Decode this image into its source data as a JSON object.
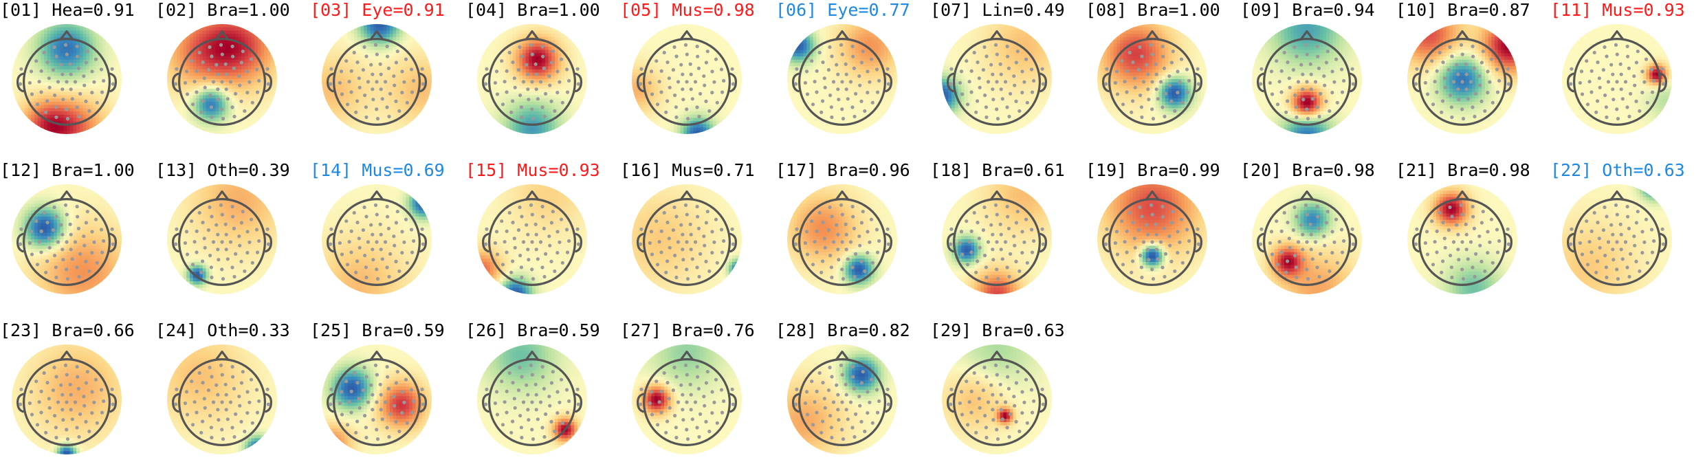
{
  "chart_data": {
    "type": "topomap-grid",
    "title": "",
    "colormap": "Spectral_r",
    "label_colors": {
      "default": "#000000",
      "red": "#ff1a1a",
      "blue": "#1e88e5"
    },
    "components": [
      {
        "index": "[01]",
        "label": "Hea",
        "score": "0.91",
        "color": "default",
        "pattern": [
          [
            "n",
            0,
            -0.55,
            0.35,
            1.3
          ],
          [
            "p",
            -0.35,
            0.85,
            0.35,
            1.1
          ],
          [
            "p",
            0.2,
            0.9,
            0.4,
            0.8
          ]
        ]
      },
      {
        "index": "[02]",
        "label": "Bra",
        "score": "1.00",
        "color": "default",
        "pattern": [
          [
            "n",
            -0.2,
            0.45,
            0.22,
            1.1
          ],
          [
            "p",
            0.3,
            -0.6,
            0.5,
            0.9
          ],
          [
            "p",
            -0.4,
            -0.5,
            0.5,
            0.6
          ]
        ]
      },
      {
        "index": "[03]",
        "label": "Eye",
        "score": "0.91",
        "color": "red",
        "pattern": [
          [
            "n",
            0.05,
            -1.0,
            0.25,
            1.4
          ],
          [
            "p",
            -0.8,
            0.2,
            0.45,
            0.45
          ],
          [
            "p",
            0.8,
            0.2,
            0.45,
            0.45
          ]
        ]
      },
      {
        "index": "[04]",
        "label": "Bra",
        "score": "1.00",
        "color": "default",
        "pattern": [
          [
            "p",
            0.1,
            -0.35,
            0.28,
            1.2
          ],
          [
            "n",
            0.0,
            0.9,
            0.35,
            0.8
          ]
        ]
      },
      {
        "index": "[05]",
        "label": "Mus",
        "score": "0.98",
        "color": "red",
        "pattern": [
          [
            "n",
            0.2,
            1.0,
            0.2,
            1.2
          ],
          [
            "p",
            -0.9,
            0.2,
            0.3,
            0.45
          ]
        ]
      },
      {
        "index": "[06]",
        "label": "Eye",
        "score": "0.77",
        "color": "blue",
        "pattern": [
          [
            "n",
            -0.8,
            -0.6,
            0.2,
            1.2
          ],
          [
            "p",
            0.5,
            -0.6,
            0.4,
            0.6
          ]
        ]
      },
      {
        "index": "[07]",
        "label": "Lin",
        "score": "0.49",
        "color": "default",
        "pattern": [
          [
            "n",
            -1.0,
            0.3,
            0.22,
            1.1
          ],
          [
            "p",
            0.5,
            -0.6,
            0.5,
            0.35
          ]
        ]
      },
      {
        "index": "[08]",
        "label": "Bra",
        "score": "1.00",
        "color": "default",
        "pattern": [
          [
            "n",
            0.4,
            0.25,
            0.2,
            1.1
          ],
          [
            "p",
            -0.3,
            -0.45,
            0.45,
            0.8
          ]
        ]
      },
      {
        "index": "[09]",
        "label": "Bra",
        "score": "0.94",
        "color": "default",
        "pattern": [
          [
            "p",
            0.0,
            0.45,
            0.2,
            1.1
          ],
          [
            "n",
            0.0,
            -0.9,
            0.45,
            0.6
          ],
          [
            "n",
            0.0,
            1.0,
            0.3,
            0.8
          ]
        ]
      },
      {
        "index": "[10]",
        "label": "Bra",
        "score": "0.87",
        "color": "default",
        "pattern": [
          [
            "n",
            0.0,
            0.0,
            0.3,
            1.0
          ],
          [
            "p",
            0.85,
            -0.6,
            0.35,
            1.1
          ],
          [
            "p",
            -0.6,
            -0.8,
            0.4,
            0.8
          ]
        ]
      },
      {
        "index": "[11]",
        "label": "Mus",
        "score": "0.93",
        "color": "red",
        "pattern": [
          [
            "p",
            0.72,
            -0.08,
            0.13,
            1.3
          ],
          [
            "n",
            0.9,
            0.4,
            0.25,
            0.3
          ]
        ]
      },
      {
        "index": "[12]",
        "label": "Bra",
        "score": "1.00",
        "color": "default",
        "pattern": [
          [
            "n",
            -0.4,
            -0.2,
            0.25,
            1.1
          ],
          [
            "p",
            0.3,
            0.6,
            0.6,
            0.5
          ]
        ]
      },
      {
        "index": "[13]",
        "label": "Oth",
        "score": "0.39",
        "color": "default",
        "pattern": [
          [
            "n",
            -0.45,
            0.65,
            0.12,
            1.2
          ],
          [
            "p",
            0.3,
            -0.7,
            0.6,
            0.45
          ]
        ]
      },
      {
        "index": "[14]",
        "label": "Mus",
        "score": "0.69",
        "color": "blue",
        "pattern": [
          [
            "n",
            0.85,
            -0.65,
            0.18,
            1.2
          ],
          [
            "p",
            -0.3,
            0.8,
            0.6,
            0.4
          ]
        ]
      },
      {
        "index": "[15]",
        "label": "Mus",
        "score": "0.93",
        "color": "red",
        "pattern": [
          [
            "n",
            -0.3,
            1.0,
            0.2,
            1.3
          ],
          [
            "p",
            -0.9,
            0.55,
            0.25,
            0.8
          ],
          [
            "p",
            0.3,
            -0.8,
            0.5,
            0.3
          ]
        ]
      },
      {
        "index": "[16]",
        "label": "Mus",
        "score": "0.71",
        "color": "default",
        "pattern": [
          [
            "n",
            0.95,
            0.55,
            0.12,
            1.3
          ],
          [
            "p",
            -0.5,
            0.0,
            0.6,
            0.35
          ]
        ]
      },
      {
        "index": "[17]",
        "label": "Bra",
        "score": "0.96",
        "color": "default",
        "pattern": [
          [
            "n",
            0.3,
            0.55,
            0.18,
            1.2
          ],
          [
            "p",
            -0.35,
            -0.2,
            0.45,
            0.6
          ]
        ]
      },
      {
        "index": "[18]",
        "label": "Bra",
        "score": "0.61",
        "color": "default",
        "pattern": [
          [
            "n",
            -0.55,
            0.2,
            0.16,
            1.2
          ],
          [
            "p",
            0.0,
            1.0,
            0.3,
            0.9
          ],
          [
            "p",
            0.5,
            -0.8,
            0.5,
            0.4
          ]
        ]
      },
      {
        "index": "[19]",
        "label": "Bra",
        "score": "0.99",
        "color": "default",
        "pattern": [
          [
            "n",
            0.0,
            0.3,
            0.14,
            1.2
          ],
          [
            "p",
            0.0,
            -0.6,
            0.6,
            0.7
          ]
        ]
      },
      {
        "index": "[20]",
        "label": "Bra",
        "score": "0.98",
        "color": "default",
        "pattern": [
          [
            "n",
            0.1,
            -0.35,
            0.22,
            1.1
          ],
          [
            "p",
            -0.35,
            0.4,
            0.2,
            1.2
          ],
          [
            "p",
            0.2,
            0.9,
            0.5,
            0.6
          ]
        ]
      },
      {
        "index": "[21]",
        "label": "Bra",
        "score": "0.98",
        "color": "default",
        "pattern": [
          [
            "p",
            -0.2,
            -0.55,
            0.22,
            1.3
          ],
          [
            "n",
            0.2,
            0.9,
            0.35,
            0.6
          ]
        ]
      },
      {
        "index": "[22]",
        "label": "Oth",
        "score": "0.63",
        "color": "blue",
        "pattern": [
          [
            "n",
            0.7,
            -1.0,
            0.18,
            1.3
          ],
          [
            "p",
            -0.5,
            0.5,
            0.6,
            0.35
          ]
        ]
      },
      {
        "index": "[23]",
        "label": "Bra",
        "score": "0.66",
        "color": "default",
        "pattern": [
          [
            "n",
            0.0,
            1.0,
            0.12,
            1.3
          ],
          [
            "p",
            0.2,
            -0.2,
            0.6,
            0.45
          ]
        ]
      },
      {
        "index": "[24]",
        "label": "Oth",
        "score": "0.33",
        "color": "default",
        "pattern": [
          [
            "n",
            0.65,
            0.9,
            0.15,
            1.3
          ],
          [
            "p",
            -0.4,
            -0.4,
            0.6,
            0.4
          ]
        ]
      },
      {
        "index": "[25]",
        "label": "Bra",
        "score": "0.59",
        "color": "default",
        "pattern": [
          [
            "n",
            -0.45,
            -0.2,
            0.25,
            1.1
          ],
          [
            "p",
            0.45,
            0.1,
            0.3,
            0.9
          ],
          [
            "p",
            -0.8,
            0.8,
            0.25,
            0.6
          ]
        ]
      },
      {
        "index": "[26]",
        "label": "Bra",
        "score": "0.59",
        "color": "default",
        "pattern": [
          [
            "p",
            0.6,
            0.55,
            0.15,
            1.3
          ],
          [
            "n",
            -0.2,
            -0.8,
            0.45,
            0.6
          ]
        ]
      },
      {
        "index": "[27]",
        "label": "Bra",
        "score": "0.76",
        "color": "default",
        "pattern": [
          [
            "p",
            -0.55,
            0.0,
            0.18,
            1.3
          ],
          [
            "n",
            0.0,
            -0.85,
            0.45,
            0.45
          ]
        ]
      },
      {
        "index": "[28]",
        "label": "Bra",
        "score": "0.82",
        "color": "default",
        "pattern": [
          [
            "n",
            0.35,
            -0.45,
            0.22,
            1.1
          ],
          [
            "p",
            -0.7,
            0.4,
            0.5,
            0.45
          ]
        ]
      },
      {
        "index": "[29]",
        "label": "Bra",
        "score": "0.63",
        "color": "default",
        "pattern": [
          [
            "p",
            0.15,
            0.3,
            0.1,
            1.3
          ],
          [
            "p",
            -0.4,
            0.0,
            0.4,
            0.45
          ],
          [
            "n",
            0.0,
            -0.9,
            0.5,
            0.4
          ]
        ]
      }
    ]
  }
}
